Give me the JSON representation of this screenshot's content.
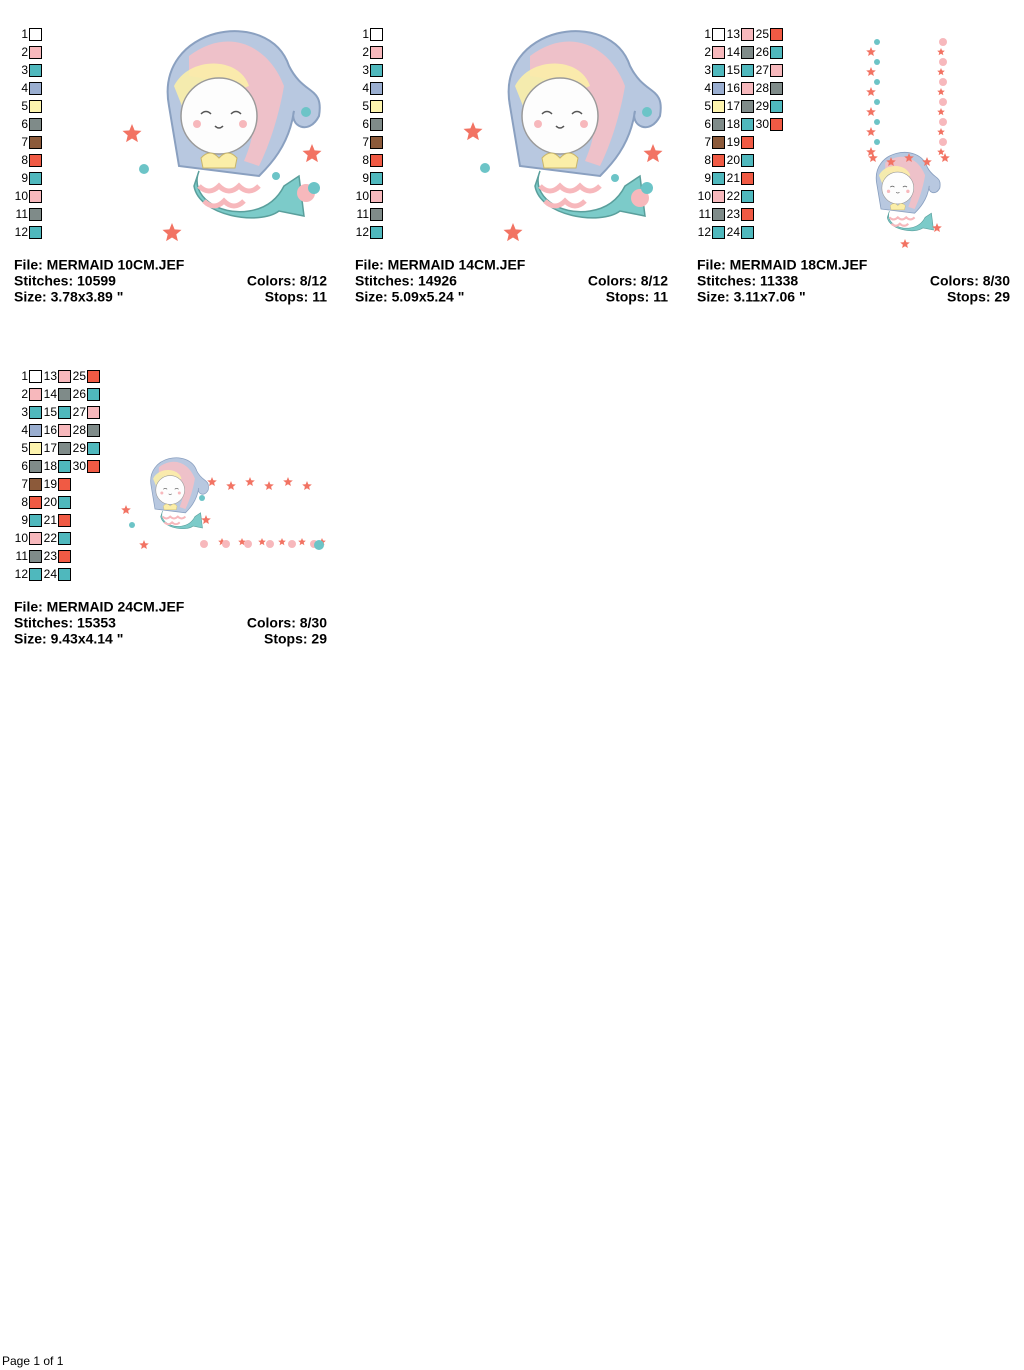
{
  "designs": [
    {
      "swatches": [
        {
          "number": 1,
          "color": "#ffffff"
        },
        {
          "number": 2,
          "color": "#f7b8bc"
        },
        {
          "number": 3,
          "color": "#4fb8bd"
        },
        {
          "number": 4,
          "color": "#9aaed0"
        },
        {
          "number": 5,
          "color": "#fdf4ae"
        },
        {
          "number": 6,
          "color": "#7f8b89"
        },
        {
          "number": 7,
          "color": "#8c5a3a"
        },
        {
          "number": 8,
          "color": "#f05a44"
        },
        {
          "number": 9,
          "color": "#4fb8bd"
        },
        {
          "number": 10,
          "color": "#f7b8bc"
        },
        {
          "number": 11,
          "color": "#7f8b89"
        },
        {
          "number": 12,
          "color": "#4fb8bd"
        }
      ],
      "file": "File: MERMAID 10CM.JEF",
      "stitches": "Stitches: 10599",
      "colors": "Colors: 8/12",
      "size": "Size: 3.78x3.89 \"",
      "stops": "Stops: 11"
    },
    {
      "swatches": [
        {
          "number": 1,
          "color": "#ffffff"
        },
        {
          "number": 2,
          "color": "#f7b8bc"
        },
        {
          "number": 3,
          "color": "#4fb8bd"
        },
        {
          "number": 4,
          "color": "#9aaed0"
        },
        {
          "number": 5,
          "color": "#fdf4ae"
        },
        {
          "number": 6,
          "color": "#7f8b89"
        },
        {
          "number": 7,
          "color": "#8c5a3a"
        },
        {
          "number": 8,
          "color": "#f05a44"
        },
        {
          "number": 9,
          "color": "#4fb8bd"
        },
        {
          "number": 10,
          "color": "#f7b8bc"
        },
        {
          "number": 11,
          "color": "#7f8b89"
        },
        {
          "number": 12,
          "color": "#4fb8bd"
        }
      ],
      "file": "File: MERMAID 14CM.JEF",
      "stitches": "Stitches: 14926",
      "colors": "Colors: 8/12",
      "size": "Size: 5.09x5.24 \"",
      "stops": "Stops: 11"
    },
    {
      "swatches": [
        {
          "number": 1,
          "color": "#ffffff"
        },
        {
          "number": 2,
          "color": "#f7b8bc"
        },
        {
          "number": 3,
          "color": "#4fb8bd"
        },
        {
          "number": 4,
          "color": "#9aaed0"
        },
        {
          "number": 5,
          "color": "#fdf4ae"
        },
        {
          "number": 6,
          "color": "#7f8b89"
        },
        {
          "number": 7,
          "color": "#8c5a3a"
        },
        {
          "number": 8,
          "color": "#f05a44"
        },
        {
          "number": 9,
          "color": "#4fb8bd"
        },
        {
          "number": 10,
          "color": "#f7b8bc"
        },
        {
          "number": 11,
          "color": "#7f8b89"
        },
        {
          "number": 12,
          "color": "#4fb8bd"
        },
        {
          "number": 13,
          "color": "#f7b8bc"
        },
        {
          "number": 14,
          "color": "#7f8b89"
        },
        {
          "number": 15,
          "color": "#4fb8bd"
        },
        {
          "number": 16,
          "color": "#f7b8bc"
        },
        {
          "number": 17,
          "color": "#7f8b89"
        },
        {
          "number": 18,
          "color": "#4fb8bd"
        },
        {
          "number": 19,
          "color": "#f05a44"
        },
        {
          "number": 20,
          "color": "#4fb8bd"
        },
        {
          "number": 21,
          "color": "#f05a44"
        },
        {
          "number": 22,
          "color": "#4fb8bd"
        },
        {
          "number": 23,
          "color": "#f05a44"
        },
        {
          "number": 24,
          "color": "#4fb8bd"
        },
        {
          "number": 25,
          "color": "#f05a44"
        },
        {
          "number": 26,
          "color": "#4fb8bd"
        },
        {
          "number": 27,
          "color": "#f7b8bc"
        },
        {
          "number": 28,
          "color": "#7f8b89"
        },
        {
          "number": 29,
          "color": "#4fb8bd"
        },
        {
          "number": 30,
          "color": "#f05a44"
        }
      ],
      "file": "File: MERMAID 18CM.JEF",
      "stitches": "Stitches: 11338",
      "colors": "Colors: 8/30",
      "size": "Size: 3.11x7.06 \"",
      "stops": "Stops: 29"
    },
    {
      "swatches": [
        {
          "number": 1,
          "color": "#ffffff"
        },
        {
          "number": 2,
          "color": "#f7b8bc"
        },
        {
          "number": 3,
          "color": "#4fb8bd"
        },
        {
          "number": 4,
          "color": "#9aaed0"
        },
        {
          "number": 5,
          "color": "#fdf4ae"
        },
        {
          "number": 6,
          "color": "#7f8b89"
        },
        {
          "number": 7,
          "color": "#8c5a3a"
        },
        {
          "number": 8,
          "color": "#f05a44"
        },
        {
          "number": 9,
          "color": "#4fb8bd"
        },
        {
          "number": 10,
          "color": "#f7b8bc"
        },
        {
          "number": 11,
          "color": "#7f8b89"
        },
        {
          "number": 12,
          "color": "#4fb8bd"
        },
        {
          "number": 13,
          "color": "#f7b8bc"
        },
        {
          "number": 14,
          "color": "#7f8b89"
        },
        {
          "number": 15,
          "color": "#4fb8bd"
        },
        {
          "number": 16,
          "color": "#f7b8bc"
        },
        {
          "number": 17,
          "color": "#7f8b89"
        },
        {
          "number": 18,
          "color": "#4fb8bd"
        },
        {
          "number": 19,
          "color": "#f05a44"
        },
        {
          "number": 20,
          "color": "#4fb8bd"
        },
        {
          "number": 21,
          "color": "#f05a44"
        },
        {
          "number": 22,
          "color": "#4fb8bd"
        },
        {
          "number": 23,
          "color": "#f05a44"
        },
        {
          "number": 24,
          "color": "#4fb8bd"
        },
        {
          "number": 25,
          "color": "#f05a44"
        },
        {
          "number": 26,
          "color": "#4fb8bd"
        },
        {
          "number": 27,
          "color": "#f7b8bc"
        },
        {
          "number": 28,
          "color": "#7f8b89"
        },
        {
          "number": 29,
          "color": "#4fb8bd"
        },
        {
          "number": 30,
          "color": "#f05a44"
        }
      ],
      "file": "File: MERMAID 24CM.JEF",
      "stitches": "Stitches: 15353",
      "colors": "Colors: 8/30",
      "size": "Size: 9.43x4.14 \"",
      "stops": "Stops: 29"
    }
  ],
  "footer": "Page 1 of 1"
}
